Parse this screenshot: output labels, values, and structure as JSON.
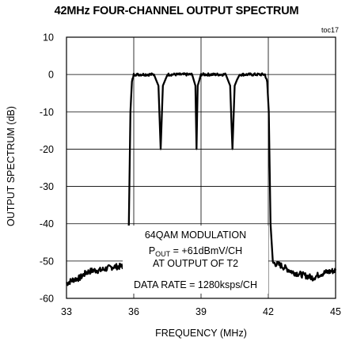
{
  "chart_data": {
    "type": "line",
    "title": "42MHz FOUR-CHANNEL OUTPUT SPECTRUM",
    "figure_id": "toc17",
    "xlabel": "FREQUENCY (MHz)",
    "ylabel": "OUTPUT SPECTRUM (dB)",
    "xlim": [
      33,
      45
    ],
    "ylim": [
      -60,
      10
    ],
    "x_ticks": [
      33,
      36,
      39,
      42,
      45
    ],
    "y_ticks": [
      10,
      0,
      -10,
      -20,
      -30,
      -40,
      -50,
      -60
    ],
    "grid": true,
    "annotations": {
      "line1": "64QAM MODULATION",
      "line2_main": "P",
      "line2_sub": "OUT",
      "line2_rest": " = +61dBmV/CH",
      "line3": "AT OUTPUT OF T2",
      "line4": "DATA RATE = 1280ksps/CH"
    },
    "series": [
      {
        "x": [
          33.0,
          33.3,
          33.6,
          33.9,
          34.2,
          34.5,
          34.8,
          35.1,
          35.4,
          35.7,
          35.78,
          35.85,
          35.92,
          36.0,
          36.15,
          36.5,
          36.9,
          37.1,
          37.2,
          37.3,
          37.5,
          37.9,
          38.3,
          38.6,
          38.75,
          38.8,
          38.85,
          39.0,
          39.4,
          39.8,
          40.1,
          40.3,
          40.4,
          40.5,
          40.7,
          41.1,
          41.5,
          41.85,
          41.95,
          42.02,
          42.1,
          42.2,
          42.5,
          42.8,
          43.1,
          43.4,
          43.7,
          44.0,
          44.3,
          44.6,
          45.0
        ],
        "y": [
          -56,
          -55,
          -54.5,
          -53,
          -52.5,
          -52.5,
          -52,
          -51.5,
          -51.5,
          -51,
          -40,
          -10,
          -2,
          0,
          0,
          0,
          0,
          -3,
          -20,
          -3,
          0,
          0,
          0,
          0,
          -3,
          -20,
          -3,
          0,
          0,
          0,
          0,
          -3,
          -20,
          -3,
          0,
          0,
          0,
          0,
          -2,
          -10,
          -40,
          -50.5,
          -51,
          -52,
          -53,
          -53.5,
          -54,
          -54.5,
          -53.5,
          -53,
          -52.5
        ]
      }
    ]
  }
}
